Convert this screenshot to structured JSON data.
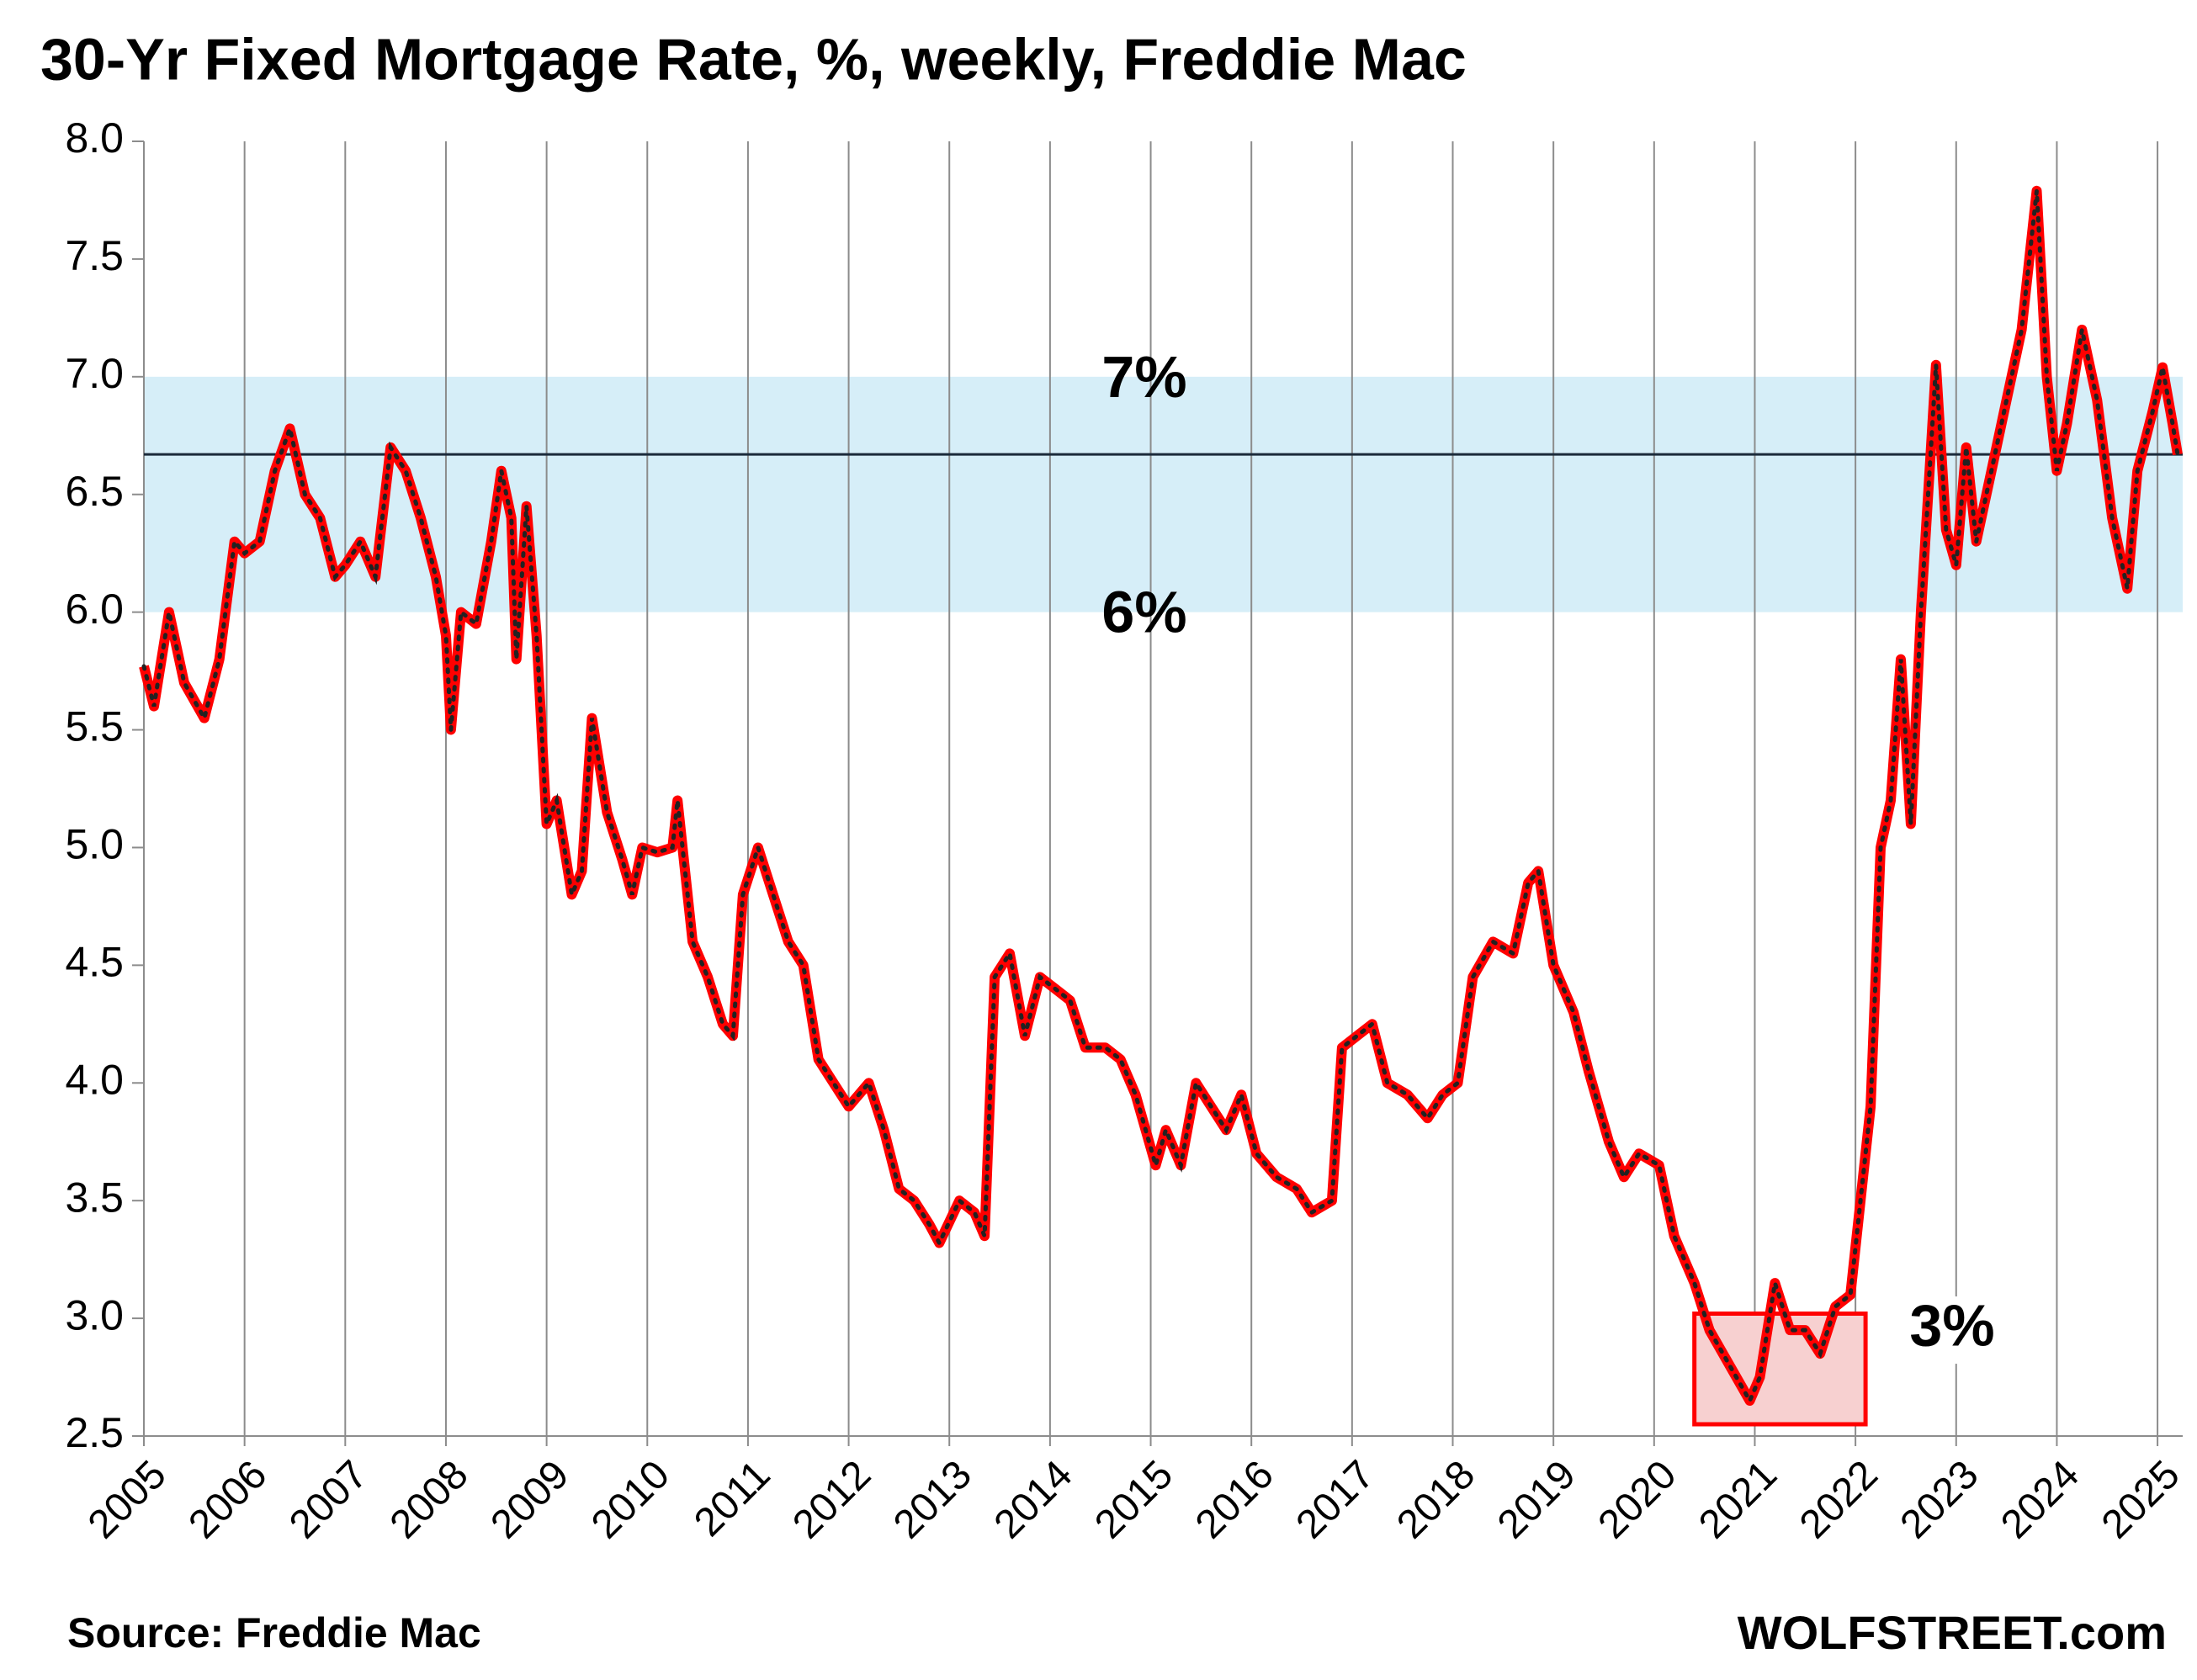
{
  "chart_data": {
    "type": "line",
    "title": "30-Yr Fixed Mortgage Rate, %, weekly, Freddie Mac",
    "source": "Source: Freddie Mac",
    "brand": "WOLFSTREET.com",
    "annotations": [
      "7%",
      "6%",
      "3%"
    ],
    "band": [
      6,
      7
    ],
    "reference_line": 6.67,
    "box": {
      "x": [
        2020.4,
        2022.1
      ],
      "y": [
        2.55,
        3.02
      ]
    },
    "xlim": [
      2005,
      2025.25
    ],
    "xticks": [
      2005,
      2006,
      2007,
      2008,
      2009,
      2010,
      2011,
      2012,
      2013,
      2014,
      2015,
      2016,
      2017,
      2018,
      2019,
      2020,
      2021,
      2022,
      2023,
      2024,
      2025
    ],
    "ylim": [
      2.5,
      8.0
    ],
    "yticks": [
      {
        "value": 2.5,
        "label": "2.5"
      },
      {
        "value": 3,
        "label": "3.0"
      },
      {
        "value": 3.5,
        "label": "3.5"
      },
      {
        "value": 4,
        "label": "4.0"
      },
      {
        "value": 4.5,
        "label": "4.5"
      },
      {
        "value": 5,
        "label": "5.0"
      },
      {
        "value": 5.5,
        "label": "5.5"
      },
      {
        "value": 6,
        "label": "6.0"
      },
      {
        "value": 6.5,
        "label": "6.5"
      },
      {
        "value": 7,
        "label": "7.0"
      },
      {
        "value": 7.5,
        "label": "7.5"
      },
      {
        "value": 8,
        "label": "8.0"
      }
    ],
    "grid": true,
    "color": "#ff0000",
    "x": [
      2005.0,
      2005.1,
      2005.25,
      2005.4,
      2005.6,
      2005.75,
      2005.9,
      2006.0,
      2006.15,
      2006.3,
      2006.45,
      2006.6,
      2006.75,
      2006.9,
      2007.0,
      2007.15,
      2007.3,
      2007.45,
      2007.6,
      2007.75,
      2007.9,
      2008.0,
      2008.05,
      2008.15,
      2008.3,
      2008.45,
      2008.55,
      2008.65,
      2008.7,
      2008.8,
      2008.9,
      2009.0,
      2009.1,
      2009.25,
      2009.35,
      2009.45,
      2009.6,
      2009.75,
      2009.85,
      2009.95,
      2010.1,
      2010.25,
      2010.3,
      2010.45,
      2010.6,
      2010.75,
      2010.85,
      2010.95,
      2011.1,
      2011.25,
      2011.4,
      2011.55,
      2011.7,
      2011.85,
      2012.0,
      2012.2,
      2012.35,
      2012.5,
      2012.65,
      2012.8,
      2012.9,
      2013.1,
      2013.25,
      2013.35,
      2013.45,
      2013.6,
      2013.75,
      2013.9,
      2014.05,
      2014.2,
      2014.35,
      2014.55,
      2014.7,
      2014.85,
      2015.05,
      2015.15,
      2015.3,
      2015.45,
      2015.6,
      2015.75,
      2015.9,
      2016.05,
      2016.25,
      2016.45,
      2016.6,
      2016.8,
      2016.9,
      2017.05,
      2017.2,
      2017.35,
      2017.55,
      2017.75,
      2017.9,
      2018.05,
      2018.2,
      2018.4,
      2018.6,
      2018.75,
      2018.85,
      2019.0,
      2019.2,
      2019.35,
      2019.55,
      2019.7,
      2019.85,
      2020.05,
      2020.2,
      2020.4,
      2020.55,
      2020.75,
      2020.95,
      2021.05,
      2021.2,
      2021.35,
      2021.5,
      2021.65,
      2021.8,
      2021.95,
      2022.05,
      2022.15,
      2022.25,
      2022.35,
      2022.45,
      2022.55,
      2022.65,
      2022.75,
      2022.8,
      2022.9,
      2023.0,
      2023.1,
      2023.2,
      2023.35,
      2023.5,
      2023.65,
      2023.8,
      2023.9,
      2024.0,
      2024.1,
      2024.25,
      2024.4,
      2024.55,
      2024.7,
      2024.8,
      2024.95,
      2025.05,
      2025.15,
      2025.2
    ],
    "values": [
      5.77,
      5.6,
      6.0,
      5.7,
      5.55,
      5.8,
      6.3,
      6.25,
      6.3,
      6.6,
      6.78,
      6.5,
      6.4,
      6.15,
      6.2,
      6.3,
      6.15,
      6.7,
      6.6,
      6.4,
      6.15,
      5.9,
      5.5,
      6.0,
      5.95,
      6.3,
      6.6,
      6.4,
      5.8,
      6.45,
      5.9,
      5.1,
      5.2,
      4.8,
      4.9,
      5.55,
      5.15,
      4.95,
      4.8,
      5.0,
      4.98,
      5.0,
      5.2,
      4.6,
      4.45,
      4.25,
      4.2,
      4.8,
      5.0,
      4.8,
      4.6,
      4.5,
      4.1,
      4.0,
      3.9,
      4.0,
      3.8,
      3.55,
      3.5,
      3.4,
      3.32,
      3.5,
      3.45,
      3.35,
      4.45,
      4.55,
      4.2,
      4.45,
      4.4,
      4.35,
      4.15,
      4.15,
      4.1,
      3.95,
      3.65,
      3.8,
      3.65,
      4.0,
      3.9,
      3.8,
      3.95,
      3.7,
      3.6,
      3.55,
      3.45,
      3.5,
      4.15,
      4.2,
      4.25,
      4.0,
      3.95,
      3.85,
      3.95,
      4.0,
      4.45,
      4.6,
      4.55,
      4.85,
      4.9,
      4.5,
      4.3,
      4.05,
      3.75,
      3.6,
      3.7,
      3.65,
      3.35,
      3.15,
      2.95,
      2.8,
      2.65,
      2.75,
      3.15,
      2.95,
      2.95,
      2.85,
      3.05,
      3.1,
      3.5,
      3.9,
      5.0,
      5.2,
      5.8,
      5.1,
      6.0,
      6.7,
      7.05,
      6.35,
      6.2,
      6.7,
      6.3,
      6.6,
      6.9,
      7.2,
      7.79,
      7.0,
      6.6,
      6.8,
      7.2,
      6.9,
      6.4,
      6.1,
      6.6,
      6.85,
      7.04,
      6.8,
      6.67
    ]
  }
}
